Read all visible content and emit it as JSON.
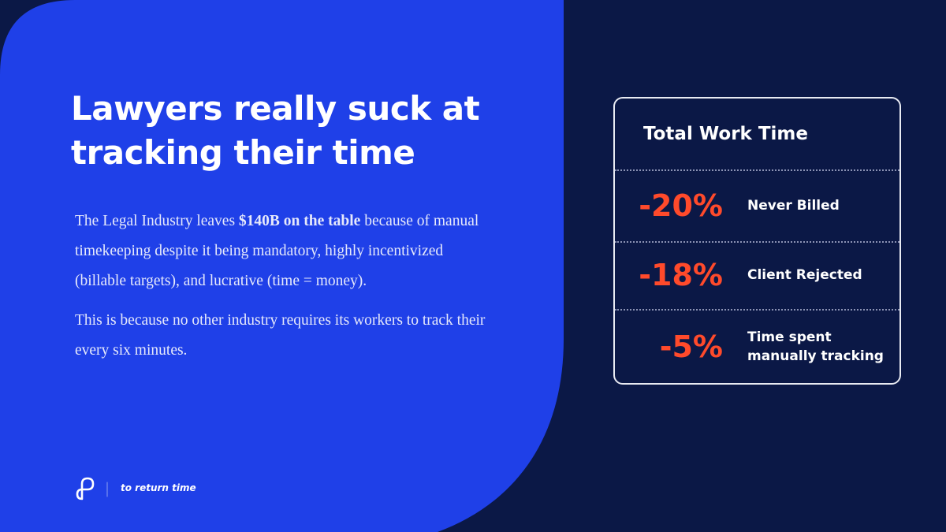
{
  "header": {
    "title": "Lawyers really suck at tracking their time"
  },
  "body": {
    "paragraph_1": {
      "before": "The Legal Industry leaves ",
      "bold": "$140B on the table",
      "after": " because of manual timekeeping despite it being mandatory, highly incentivized (billable targets), and lucrative (time = money)."
    },
    "paragraph_2": "This is because no other industry requires its workers to track their every six minutes."
  },
  "card": {
    "title": "Total Work Time",
    "rows": [
      {
        "value": "-20%",
        "label": "Never Billed"
      },
      {
        "value": "-18%",
        "label": "Client Rejected"
      },
      {
        "value": "-5%",
        "label": "Time spent manually tracking"
      }
    ]
  },
  "footer": {
    "tagline": "to return time"
  }
}
